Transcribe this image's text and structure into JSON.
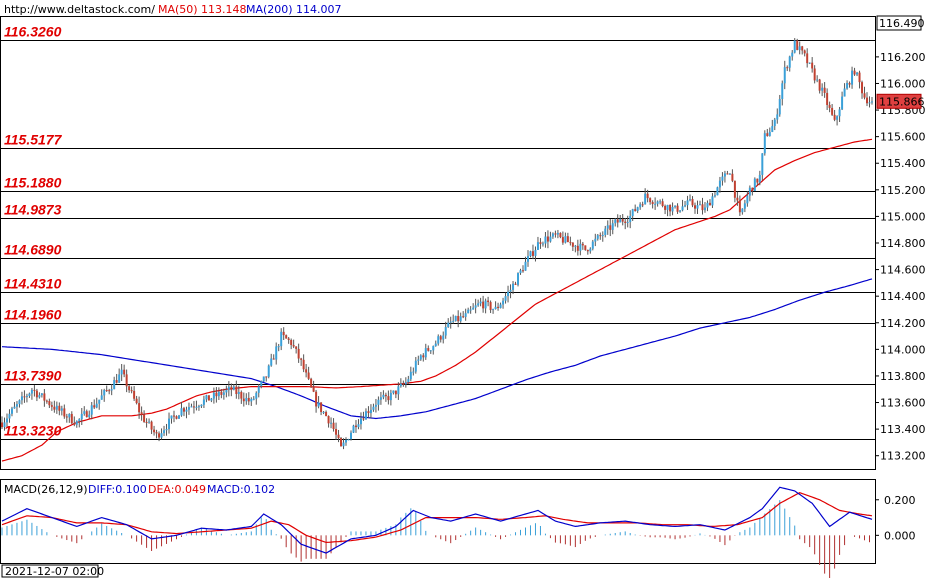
{
  "header": {
    "site": "http://www.deltastock.com/",
    "ma50_label": "MA(50)",
    "ma50_value": "113.148",
    "ma200_label": "MA(200)",
    "ma200_value": "114.007"
  },
  "chart_data": {
    "type": "candlestick",
    "ylim": [
      113.1,
      116.5
    ],
    "levels": [
      {
        "label": "116.3260",
        "value": 116.326
      },
      {
        "label": "115.5177",
        "value": 115.5177
      },
      {
        "label": "115.1880",
        "value": 115.188
      },
      {
        "label": "114.9873",
        "value": 114.9873
      },
      {
        "label": "114.6890",
        "value": 114.689
      },
      {
        "label": "114.4310",
        "value": 114.431
      },
      {
        "label": "114.1960",
        "value": 114.196
      },
      {
        "label": "113.7390",
        "value": 113.739
      },
      {
        "label": "113.3230",
        "value": 113.323
      }
    ],
    "y_ticks": [
      "116.200",
      "116.000",
      "115.800",
      "115.600",
      "115.400",
      "115.200",
      "115.000",
      "114.800",
      "114.600",
      "114.400",
      "114.200",
      "114.000",
      "113.800",
      "113.600",
      "113.400",
      "113.200"
    ],
    "top_price": "116.490",
    "current_price": "115.866",
    "close_anchors": [
      [
        0,
        113.45
      ],
      [
        12,
        113.7
      ],
      [
        22,
        113.55
      ],
      [
        30,
        113.45
      ],
      [
        38,
        113.6
      ],
      [
        48,
        113.82
      ],
      [
        56,
        113.5
      ],
      [
        62,
        113.35
      ],
      [
        72,
        113.55
      ],
      [
        82,
        113.62
      ],
      [
        92,
        113.7
      ],
      [
        100,
        113.6
      ],
      [
        106,
        113.8
      ],
      [
        112,
        114.1
      ],
      [
        116,
        114.05
      ],
      [
        120,
        113.9
      ],
      [
        126,
        113.6
      ],
      [
        132,
        113.45
      ],
      [
        136,
        113.25
      ],
      [
        142,
        113.45
      ],
      [
        150,
        113.6
      ],
      [
        156,
        113.65
      ],
      [
        162,
        113.75
      ],
      [
        168,
        113.95
      ],
      [
        174,
        114.05
      ],
      [
        180,
        114.2
      ],
      [
        186,
        114.25
      ],
      [
        192,
        114.35
      ],
      [
        198,
        114.3
      ],
      [
        204,
        114.45
      ],
      [
        210,
        114.65
      ],
      [
        216,
        114.82
      ],
      [
        222,
        114.85
      ],
      [
        228,
        114.8
      ],
      [
        234,
        114.75
      ],
      [
        240,
        114.85
      ],
      [
        246,
        114.95
      ],
      [
        252,
        115.0
      ],
      [
        258,
        115.15
      ],
      [
        264,
        115.1
      ],
      [
        270,
        115.05
      ],
      [
        276,
        115.1
      ],
      [
        282,
        115.05
      ],
      [
        288,
        115.25
      ],
      [
        292,
        115.35
      ],
      [
        296,
        115.0
      ],
      [
        300,
        115.2
      ],
      [
        304,
        115.3
      ],
      [
        306,
        115.6
      ],
      [
        310,
        115.7
      ],
      [
        314,
        116.1
      ],
      [
        318,
        116.3
      ],
      [
        322,
        116.2
      ],
      [
        326,
        116.05
      ],
      [
        330,
        115.9
      ],
      [
        334,
        115.7
      ],
      [
        338,
        115.95
      ],
      [
        342,
        116.1
      ],
      [
        346,
        115.9
      ],
      [
        349,
        115.85
      ]
    ],
    "ma50_anchors": [
      [
        0,
        113.16
      ],
      [
        8,
        113.2
      ],
      [
        16,
        113.28
      ],
      [
        22,
        113.38
      ],
      [
        30,
        113.45
      ],
      [
        40,
        113.5
      ],
      [
        52,
        113.5
      ],
      [
        60,
        113.52
      ],
      [
        66,
        113.55
      ],
      [
        72,
        113.6
      ],
      [
        78,
        113.65
      ],
      [
        84,
        113.68
      ],
      [
        90,
        113.7
      ],
      [
        100,
        113.72
      ],
      [
        110,
        113.72
      ],
      [
        122,
        113.72
      ],
      [
        134,
        113.71
      ],
      [
        144,
        113.72
      ],
      [
        152,
        113.73
      ],
      [
        160,
        113.74
      ],
      [
        168,
        113.76
      ],
      [
        174,
        113.8
      ],
      [
        182,
        113.88
      ],
      [
        190,
        113.98
      ],
      [
        198,
        114.1
      ],
      [
        206,
        114.22
      ],
      [
        214,
        114.34
      ],
      [
        222,
        114.42
      ],
      [
        230,
        114.5
      ],
      [
        238,
        114.58
      ],
      [
        246,
        114.66
      ],
      [
        254,
        114.74
      ],
      [
        262,
        114.82
      ],
      [
        270,
        114.9
      ],
      [
        278,
        114.95
      ],
      [
        286,
        115.0
      ],
      [
        292,
        115.05
      ],
      [
        298,
        115.15
      ],
      [
        304,
        115.25
      ],
      [
        310,
        115.35
      ],
      [
        318,
        115.42
      ],
      [
        326,
        115.48
      ],
      [
        334,
        115.52
      ],
      [
        342,
        115.56
      ],
      [
        349,
        115.58
      ]
    ],
    "ma200_anchors": [
      [
        0,
        114.02
      ],
      [
        20,
        114.0
      ],
      [
        40,
        113.96
      ],
      [
        60,
        113.9
      ],
      [
        80,
        113.84
      ],
      [
        100,
        113.78
      ],
      [
        110,
        113.72
      ],
      [
        120,
        113.65
      ],
      [
        130,
        113.57
      ],
      [
        140,
        113.5
      ],
      [
        150,
        113.48
      ],
      [
        160,
        113.5
      ],
      [
        170,
        113.53
      ],
      [
        180,
        113.58
      ],
      [
        190,
        113.63
      ],
      [
        200,
        113.7
      ],
      [
        210,
        113.77
      ],
      [
        220,
        113.83
      ],
      [
        230,
        113.88
      ],
      [
        240,
        113.95
      ],
      [
        250,
        114.0
      ],
      [
        260,
        114.05
      ],
      [
        270,
        114.1
      ],
      [
        280,
        114.16
      ],
      [
        290,
        114.2
      ],
      [
        300,
        114.24
      ],
      [
        310,
        114.3
      ],
      [
        320,
        114.37
      ],
      [
        330,
        114.43
      ],
      [
        340,
        114.48
      ],
      [
        349,
        114.53
      ]
    ],
    "time_label": "2021-12-07 02:00",
    "macd": {
      "label": "MACD(26,12,9)",
      "diff_label": "DIFF:0.100",
      "dea_label": "DEA:0.049",
      "macd_label": "MACD:0.102",
      "y_ticks": [
        "0.200",
        "0.000"
      ],
      "ylim": [
        -0.15,
        0.3
      ],
      "diff_anchors": [
        [
          0,
          0.08
        ],
        [
          10,
          0.15
        ],
        [
          20,
          0.1
        ],
        [
          30,
          0.05
        ],
        [
          40,
          0.1
        ],
        [
          50,
          0.06
        ],
        [
          60,
          -0.02
        ],
        [
          70,
          0.0
        ],
        [
          80,
          0.04
        ],
        [
          90,
          0.03
        ],
        [
          100,
          0.05
        ],
        [
          105,
          0.12
        ],
        [
          112,
          0.06
        ],
        [
          120,
          -0.05
        ],
        [
          130,
          -0.1
        ],
        [
          140,
          -0.02
        ],
        [
          150,
          0.0
        ],
        [
          158,
          0.05
        ],
        [
          165,
          0.14
        ],
        [
          172,
          0.1
        ],
        [
          180,
          0.08
        ],
        [
          190,
          0.12
        ],
        [
          200,
          0.08
        ],
        [
          210,
          0.12
        ],
        [
          215,
          0.14
        ],
        [
          222,
          0.08
        ],
        [
          230,
          0.05
        ],
        [
          240,
          0.07
        ],
        [
          250,
          0.08
        ],
        [
          260,
          0.06
        ],
        [
          270,
          0.05
        ],
        [
          280,
          0.06
        ],
        [
          290,
          0.03
        ],
        [
          300,
          0.1
        ],
        [
          305,
          0.15
        ],
        [
          312,
          0.27
        ],
        [
          318,
          0.25
        ],
        [
          325,
          0.18
        ],
        [
          332,
          0.05
        ],
        [
          340,
          0.13
        ],
        [
          349,
          0.09
        ]
      ],
      "dea_anchors": [
        [
          0,
          0.06
        ],
        [
          10,
          0.11
        ],
        [
          20,
          0.1
        ],
        [
          30,
          0.07
        ],
        [
          40,
          0.07
        ],
        [
          50,
          0.06
        ],
        [
          60,
          0.02
        ],
        [
          70,
          0.01
        ],
        [
          80,
          0.02
        ],
        [
          90,
          0.03
        ],
        [
          100,
          0.04
        ],
        [
          108,
          0.08
        ],
        [
          115,
          0.06
        ],
        [
          122,
          0.0
        ],
        [
          130,
          -0.04
        ],
        [
          140,
          -0.03
        ],
        [
          150,
          -0.01
        ],
        [
          160,
          0.03
        ],
        [
          170,
          0.1
        ],
        [
          180,
          0.1
        ],
        [
          190,
          0.1
        ],
        [
          200,
          0.09
        ],
        [
          210,
          0.1
        ],
        [
          218,
          0.11
        ],
        [
          225,
          0.09
        ],
        [
          235,
          0.07
        ],
        [
          245,
          0.07
        ],
        [
          255,
          0.07
        ],
        [
          265,
          0.06
        ],
        [
          275,
          0.06
        ],
        [
          285,
          0.05
        ],
        [
          295,
          0.06
        ],
        [
          305,
          0.1
        ],
        [
          312,
          0.18
        ],
        [
          320,
          0.24
        ],
        [
          328,
          0.2
        ],
        [
          336,
          0.14
        ],
        [
          344,
          0.12
        ],
        [
          349,
          0.11
        ]
      ]
    }
  }
}
